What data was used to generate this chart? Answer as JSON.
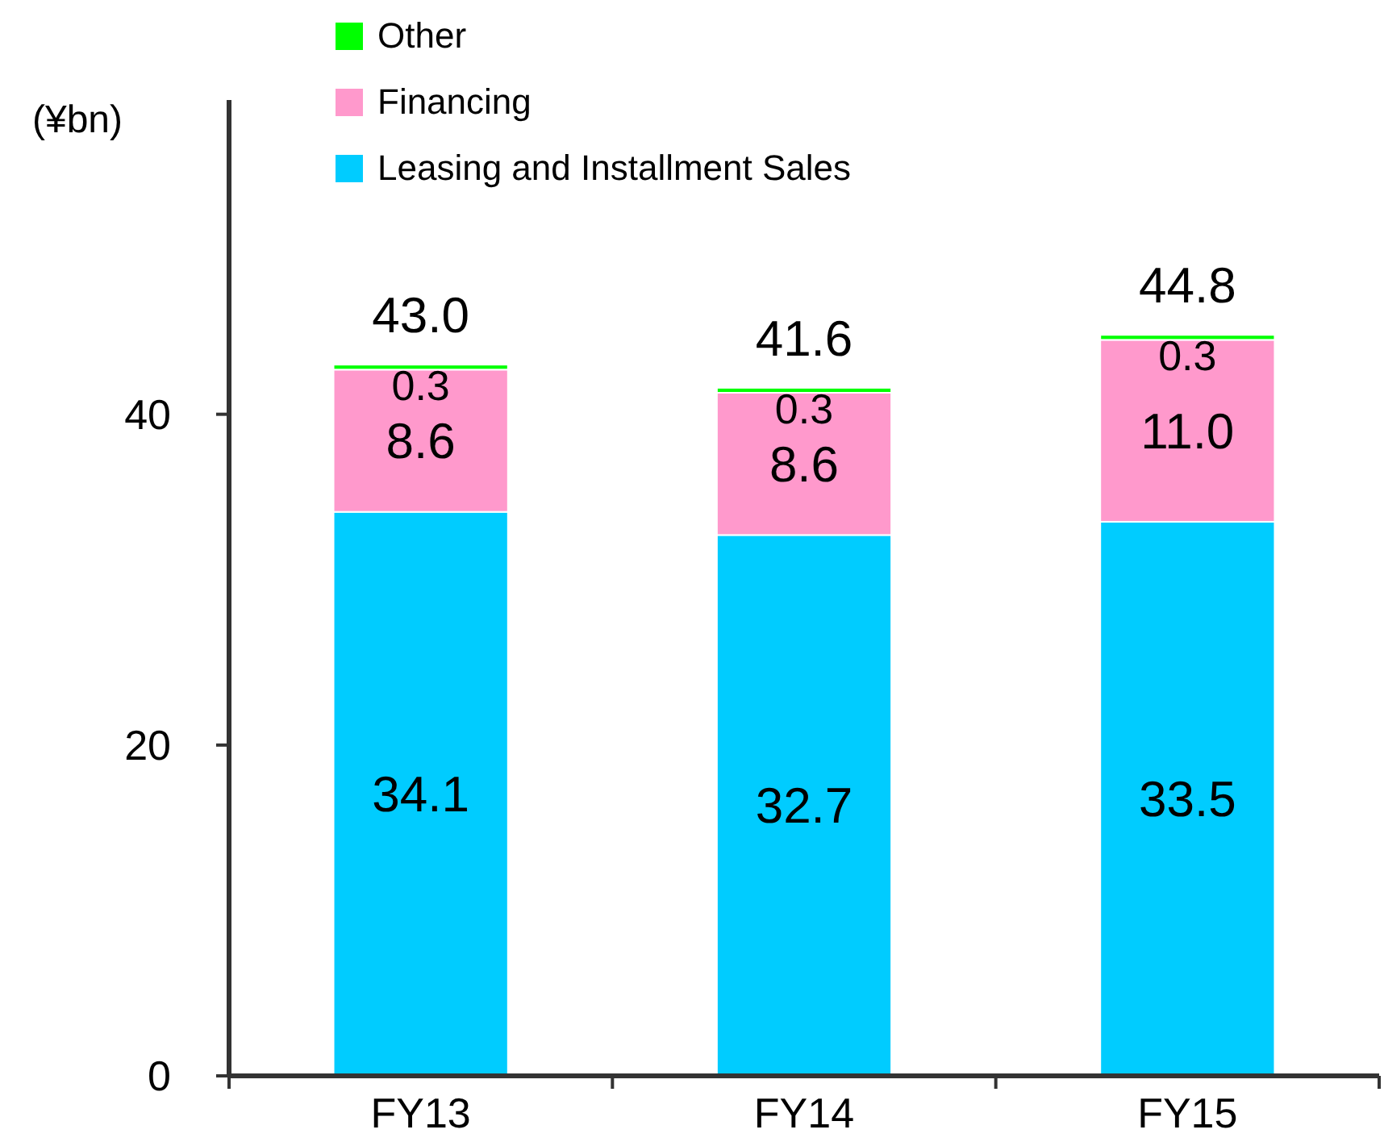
{
  "chart_data": {
    "type": "bar",
    "stacked": true,
    "ylabel": "(¥bn)",
    "categories": [
      "FY13",
      "FY14",
      "FY15"
    ],
    "series": [
      {
        "name": "Leasing and Installment Sales",
        "color": "#00ccff",
        "values": [
          34.1,
          32.7,
          33.5
        ],
        "value_labels": [
          "34.1",
          "32.7",
          "33.5"
        ]
      },
      {
        "name": "Financing",
        "color": "#ff99cc",
        "values": [
          8.6,
          8.6,
          11.0
        ],
        "value_labels": [
          "8.6",
          "8.6",
          "11.0"
        ]
      },
      {
        "name": "Other",
        "color": "#00ff00",
        "values": [
          0.3,
          0.3,
          0.3
        ],
        "value_labels": [
          "0.3",
          "0.3",
          "0.3"
        ]
      }
    ],
    "totals": [
      "43.0",
      "41.6",
      "44.8"
    ],
    "ylim": [
      0,
      59
    ],
    "yticks": [
      0,
      20,
      40
    ],
    "grid": false,
    "legend": "top"
  }
}
